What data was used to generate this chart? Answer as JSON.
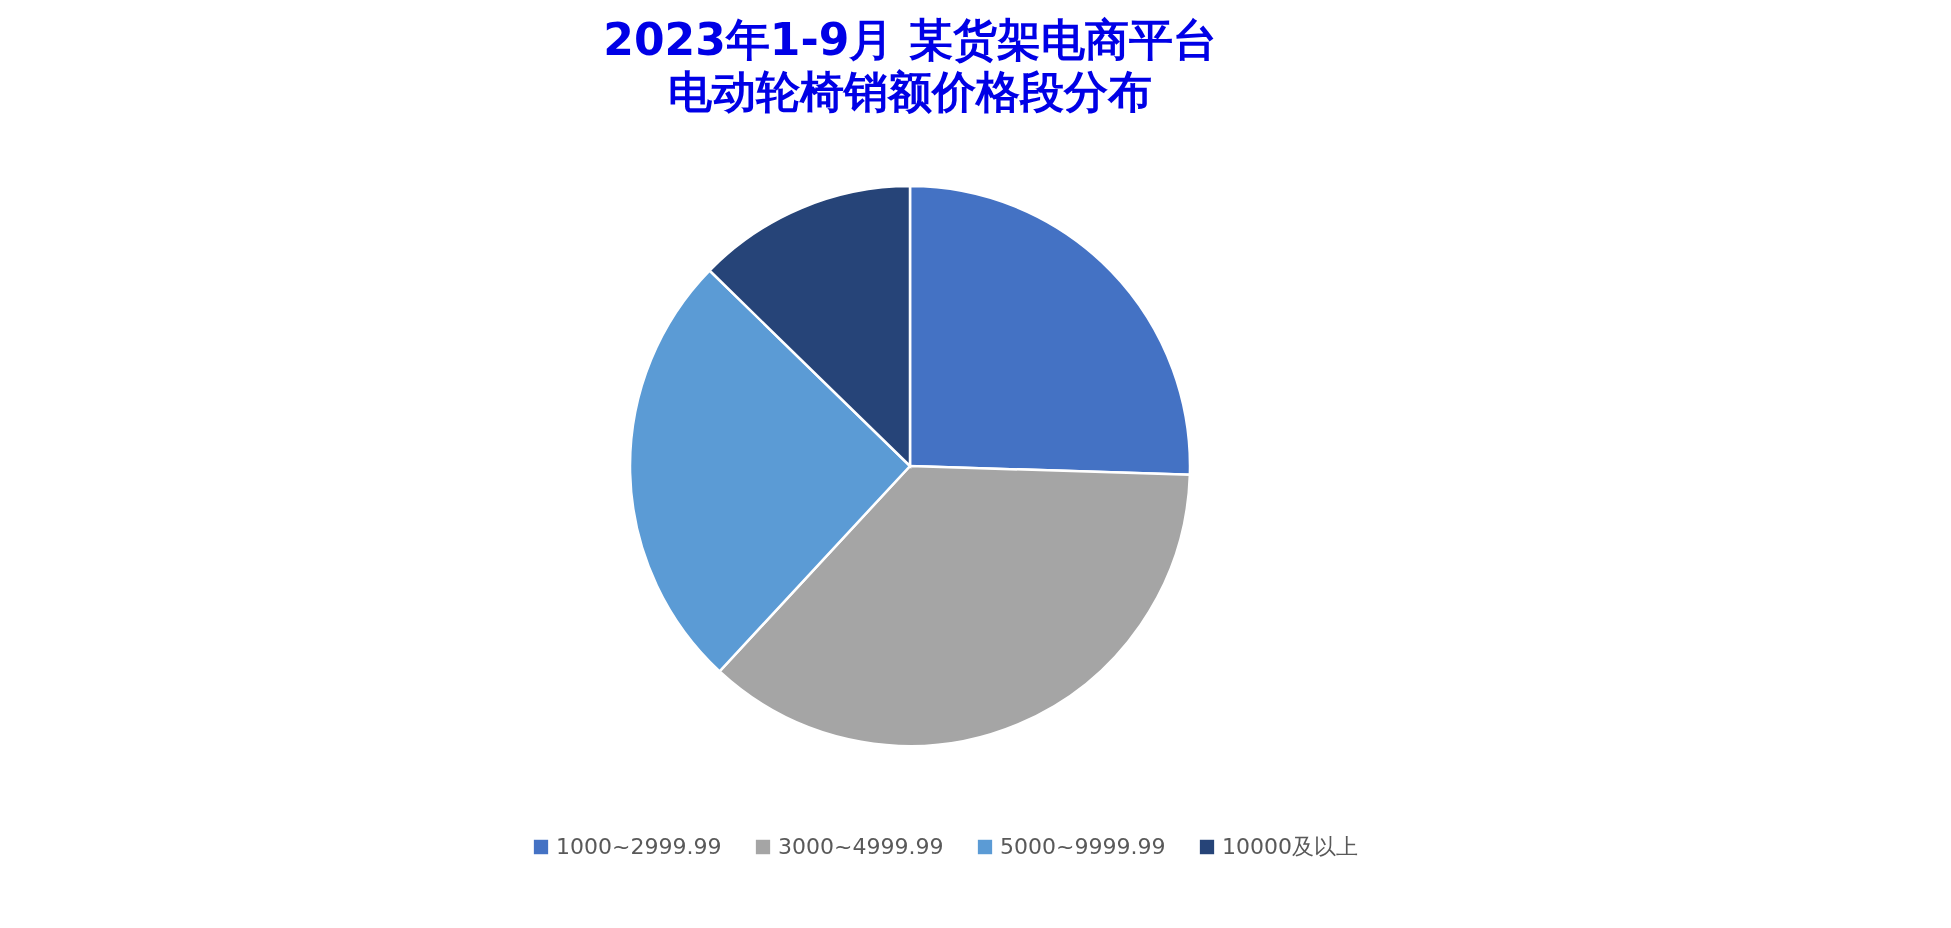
{
  "chart_data": {
    "type": "pie",
    "title": "2023年1-9月 某货架电商平台",
    "subtitle": "电动轮椅销额价格段分布",
    "categories": [
      "1000~2999.99",
      "3000~4999.99",
      "5000~9999.99",
      "10000及以上"
    ],
    "values": [
      25.5,
      36.4,
      25.4,
      12.7
    ],
    "colors": [
      "#4472c4",
      "#a5a5a5",
      "#5b9bd5",
      "#264478"
    ],
    "legend": "bottom"
  }
}
